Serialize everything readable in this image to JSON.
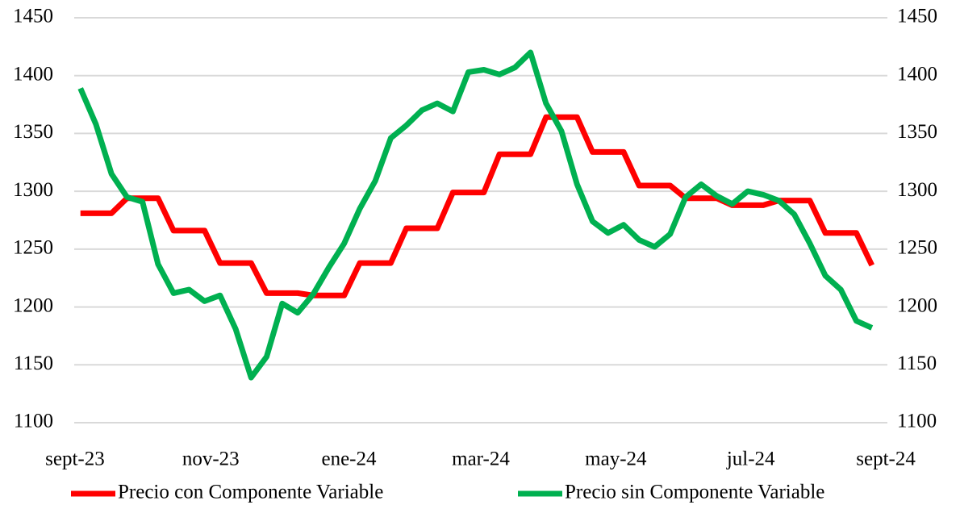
{
  "chart_data": {
    "type": "line",
    "x": [
      0,
      1,
      2,
      3,
      4,
      5,
      6,
      7,
      8,
      9,
      10,
      11,
      12,
      13,
      14,
      15,
      16,
      17,
      18,
      19,
      20,
      21,
      22,
      23,
      24,
      25,
      26,
      27,
      28,
      29,
      30,
      31,
      32,
      33,
      34,
      35,
      36,
      37,
      38,
      39,
      40,
      41,
      42,
      43,
      44,
      45,
      46,
      47,
      48,
      49,
      50,
      51
    ],
    "xlim": [
      -0.4,
      52
    ],
    "xticks": [
      {
        "value": -0.35,
        "label": "sept-23"
      },
      {
        "value": 8.4,
        "label": "nov-23"
      },
      {
        "value": 17.3,
        "label": "ene-24"
      },
      {
        "value": 25.8,
        "label": "mar-24"
      },
      {
        "value": 34.5,
        "label": "may-24"
      },
      {
        "value": 43.2,
        "label": "jul-24"
      },
      {
        "value": 51.9,
        "label": "sept-24"
      }
    ],
    "ylim": [
      1100,
      1450
    ],
    "yticks": [
      1100,
      1150,
      1200,
      1250,
      1300,
      1350,
      1400,
      1450
    ],
    "y2lim": [
      1100,
      1450
    ],
    "y2ticks": [
      1100,
      1150,
      1200,
      1250,
      1300,
      1350,
      1400,
      1450
    ],
    "grid": true,
    "legend": "bottom",
    "series": [
      {
        "name": "Precio con Componente Variable",
        "color": "#ff0000",
        "values": [
          1281,
          1281,
          1281,
          1294,
          1294,
          1294,
          1266,
          1266,
          1266,
          1238,
          1238,
          1238,
          1212,
          1212,
          1212,
          1210,
          1210,
          1210,
          1238,
          1238,
          1238,
          1268,
          1268,
          1268,
          1299,
          1299,
          1299,
          1332,
          1332,
          1332,
          1364,
          1364,
          1364,
          1334,
          1334,
          1334,
          1305,
          1305,
          1305,
          1294,
          1294,
          1294,
          1288,
          1288,
          1288,
          1292,
          1292,
          1292,
          1264,
          1264,
          1264,
          1236
        ]
      },
      {
        "name": "Precio sin Componente Variable",
        "color": "#00b050",
        "values": [
          1389,
          1358,
          1315,
          1295,
          1291,
          1237,
          1212,
          1215,
          1205,
          1210,
          1181,
          1139,
          1157,
          1203,
          1195,
          1211,
          1234,
          1255,
          1285,
          1309,
          1346,
          1357,
          1370,
          1376,
          1369,
          1403,
          1405,
          1401,
          1407,
          1420,
          1376,
          1352,
          1306,
          1274,
          1264,
          1271,
          1258,
          1252,
          1263,
          1295,
          1306,
          1296,
          1289,
          1300,
          1297,
          1292,
          1280,
          1255,
          1227,
          1215,
          1188,
          1182
        ]
      }
    ]
  }
}
